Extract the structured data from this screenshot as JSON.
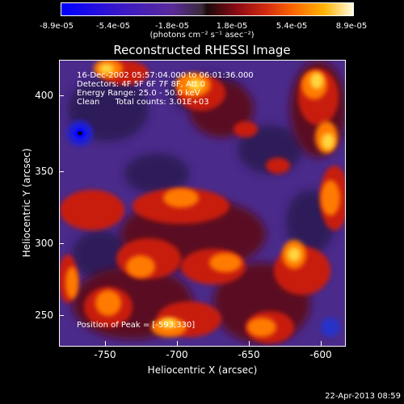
{
  "colorbar": {
    "ticks": [
      "-8.9e-05",
      "-5.4e-05",
      "-1.8e-05",
      "1.8e-05",
      "5.4e-05",
      "8.9e-05"
    ],
    "unit_label": "(photons cm⁻² s⁻¹ asec⁻²)"
  },
  "title": "Reconstructed RHESSI Image",
  "info": {
    "time_range": "16-Dec-2002 05:57:04.000 to 06:01:36.000",
    "detectors": "Detectors: 4F 5F 6F 7F 8F, Att 0",
    "energy": "Energy Range: 25.0 - 50.0 keV",
    "method": "Clean      Total counts: 3.01E+03",
    "peak": "Position of Peak = [-593,330]"
  },
  "axes": {
    "x_ticks": [
      "-750",
      "-700",
      "-650",
      "-600"
    ],
    "y_ticks": [
      "400",
      "350",
      "300",
      "250"
    ],
    "xlabel": "Heliocentric X (arcsec)",
    "ylabel": "Heliocentric Y (arcsec)"
  },
  "timestamp": "22-Apr-2013 08:59"
}
